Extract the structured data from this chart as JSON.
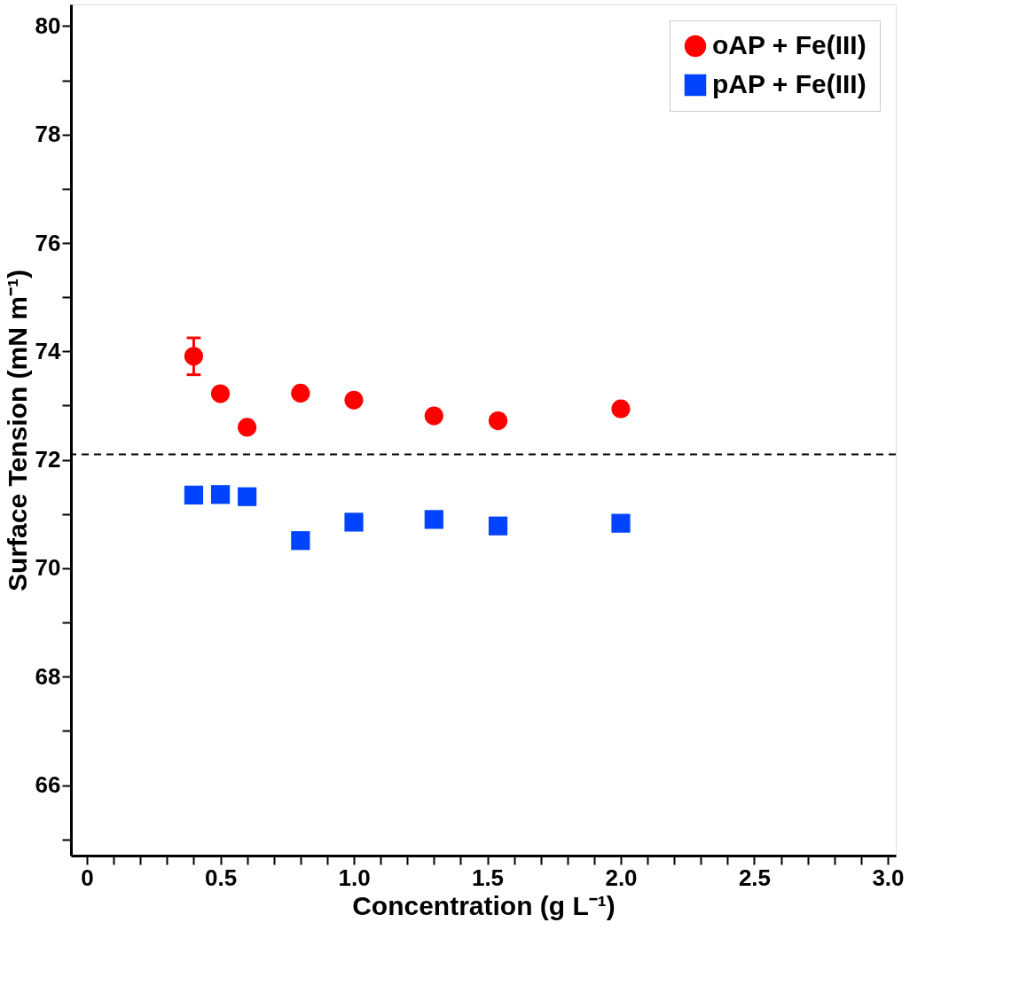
{
  "chart_data": {
    "type": "scatter",
    "xlabel": "Concentration (g L⁻¹)",
    "ylabel": "Surface Tension (mN m⁻¹)",
    "xlim": [
      -0.06,
      3.03
    ],
    "ylim": [
      64.7,
      80.4
    ],
    "xticks": [
      0,
      {
        "value": 0.1,
        "label": null
      },
      {
        "value": 0.2,
        "label": null
      },
      {
        "value": 0.3,
        "label": null
      },
      {
        "value": 0.4,
        "label": null
      },
      0.5,
      {
        "value": 0.6,
        "label": null
      },
      {
        "value": 0.7,
        "label": null
      },
      {
        "value": 0.8,
        "label": null
      },
      {
        "value": 0.9,
        "label": null
      },
      {
        "value": 1,
        "label": "1.0"
      },
      {
        "value": 1.1,
        "label": null
      },
      {
        "value": 1.2,
        "label": null
      },
      {
        "value": 1.3,
        "label": null
      },
      {
        "value": 1.4,
        "label": null
      },
      1.5,
      {
        "value": 1.6,
        "label": null
      },
      {
        "value": 1.7,
        "label": null
      },
      {
        "value": 1.8,
        "label": null
      },
      {
        "value": 1.9,
        "label": null
      },
      {
        "value": 2,
        "label": "2.0"
      },
      {
        "value": 2.1,
        "label": null
      },
      {
        "value": 2.2,
        "label": null
      },
      {
        "value": 2.3,
        "label": null
      },
      {
        "value": 2.4,
        "label": null
      },
      2.5,
      {
        "value": 2.6,
        "label": null
      },
      {
        "value": 2.7,
        "label": null
      },
      {
        "value": 2.8,
        "label": null
      },
      {
        "value": 2.9,
        "label": null
      },
      {
        "value": 3,
        "label": "3.0"
      }
    ],
    "yticks": [
      {
        "value": 65,
        "label": null
      },
      66,
      {
        "value": 67,
        "label": null
      },
      68,
      {
        "value": 69,
        "label": null
      },
      70,
      {
        "value": 71,
        "label": null
      },
      72,
      {
        "value": 73,
        "label": null
      },
      74,
      {
        "value": 75,
        "label": null
      },
      76,
      {
        "value": 77,
        "label": null
      },
      78,
      {
        "value": 79,
        "label": null
      },
      80
    ],
    "x": [
      0.4,
      0.5,
      0.6,
      0.8,
      1.0,
      1.3,
      1.54,
      2.0
    ],
    "series": [
      {
        "name": "oAP + Fe(III)",
        "color": "#ff0000",
        "marker": "circle",
        "values": [
          73.91,
          73.22,
          72.6,
          73.23,
          73.1,
          72.81,
          72.72,
          72.94
        ],
        "errors": [
          0.34,
          null,
          null,
          null,
          null,
          null,
          null,
          null
        ]
      },
      {
        "name": "pAP + Fe(III)",
        "color": "#0044ff",
        "marker": "square",
        "values": [
          71.35,
          71.36,
          71.32,
          70.51,
          70.85,
          70.9,
          70.78,
          70.83
        ]
      }
    ],
    "ref_lines": [
      {
        "axis": "y",
        "value": 72.1,
        "color": "#000000",
        "line_style": "dashed"
      }
    ],
    "legend": "top right",
    "grid": false
  }
}
